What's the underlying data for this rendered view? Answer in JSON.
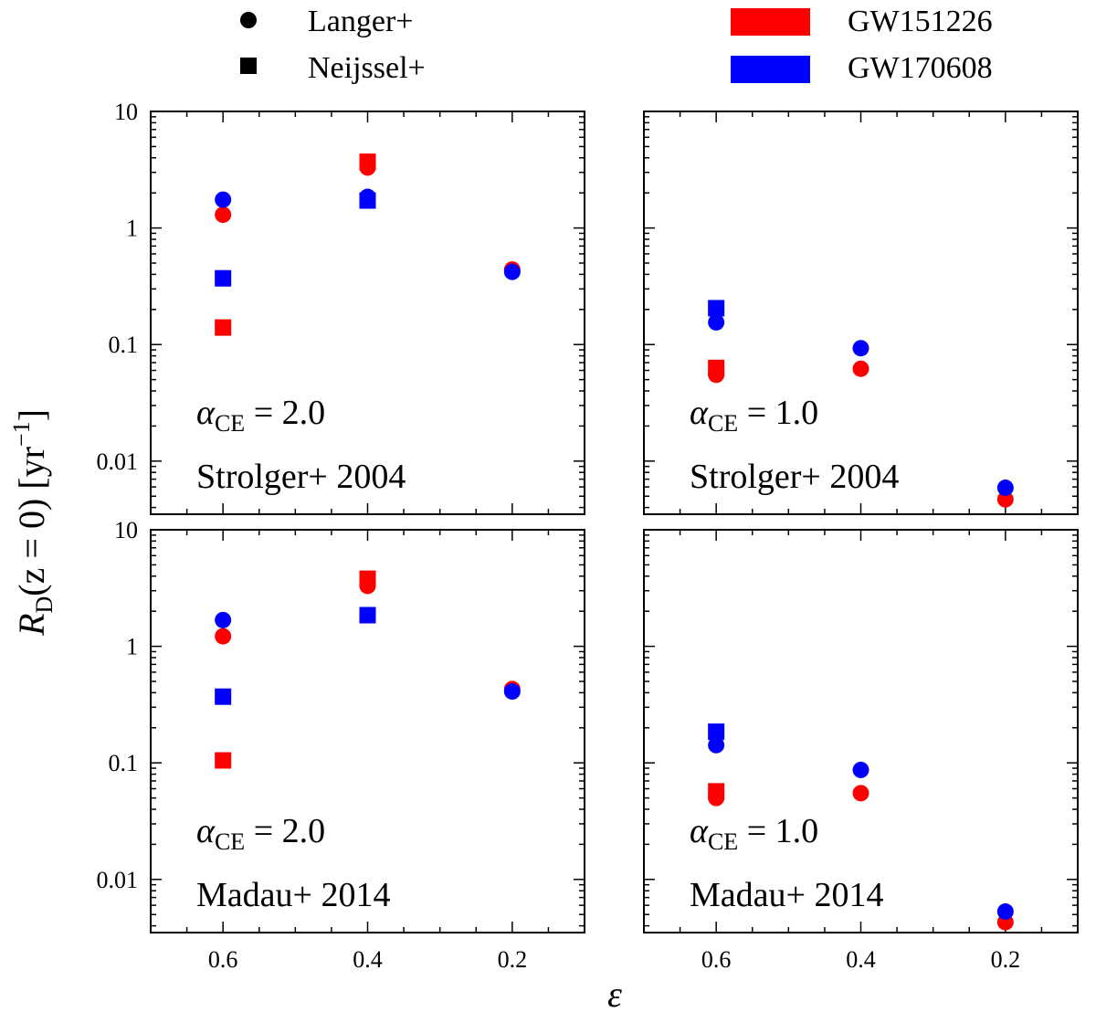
{
  "chart_data": {
    "type": "scatter",
    "x_label": "ε",
    "y_label": {
      "main": "R",
      "subscript": "D",
      "middle": "(z = 0) [yr",
      "superscript": "−1",
      "end": "]"
    },
    "x_ticks": [
      0.6,
      0.4,
      0.2
    ],
    "x_tick_labels": [
      "0.6",
      "0.4",
      "0.2"
    ],
    "x_range": [
      0.7,
      0.1
    ],
    "x_inverted": true,
    "y_scale": "log",
    "y_range": [
      0.0035,
      10
    ],
    "y_ticks": [
      0.01,
      0.1,
      1,
      10
    ],
    "y_tick_labels": [
      "0.01",
      "0.1",
      "1",
      "10"
    ],
    "legend": {
      "markers": [
        {
          "shape": "circle",
          "label": "Langer+"
        },
        {
          "shape": "square",
          "label": "Neijssel+"
        }
      ],
      "colors": [
        {
          "color": "#ff0000",
          "label": "GW151226"
        },
        {
          "color": "#0000ff",
          "label": "GW170608"
        }
      ]
    },
    "colors": {
      "GW151226": "#ff0000",
      "GW170608": "#0000ff"
    },
    "panels": [
      {
        "row": 0,
        "col": 0,
        "alpha_prefix": "α",
        "alpha_sub": "CE",
        "alpha_value": "= 2.0",
        "sfr_label": "Strolger+ 2004",
        "series": [
          {
            "event": "GW151226",
            "model": "Langer+",
            "x": [
              0.6,
              0.4,
              0.2
            ],
            "y": [
              1.3,
              3.3,
              0.44
            ]
          },
          {
            "event": "GW151226",
            "model": "Neijssel+",
            "x": [
              0.6,
              0.4
            ],
            "y": [
              0.14,
              3.7
            ]
          },
          {
            "event": "GW170608",
            "model": "Langer+",
            "x": [
              0.6,
              0.4,
              0.2
            ],
            "y": [
              1.75,
              1.85,
              0.42
            ]
          },
          {
            "event": "GW170608",
            "model": "Neijssel+",
            "x": [
              0.6,
              0.4
            ],
            "y": [
              0.37,
              1.72
            ]
          }
        ]
      },
      {
        "row": 0,
        "col": 1,
        "alpha_prefix": "α",
        "alpha_sub": "CE",
        "alpha_value": "= 1.0",
        "sfr_label": "Strolger+ 2004",
        "series": [
          {
            "event": "GW151226",
            "model": "Langer+",
            "x": [
              0.6,
              0.4,
              0.2
            ],
            "y": [
              0.055,
              0.062,
              0.0047
            ]
          },
          {
            "event": "GW151226",
            "model": "Neijssel+",
            "x": [
              0.6
            ],
            "y": [
              0.063
            ]
          },
          {
            "event": "GW170608",
            "model": "Langer+",
            "x": [
              0.6,
              0.4,
              0.2
            ],
            "y": [
              0.155,
              0.093,
              0.0059
            ]
          },
          {
            "event": "GW170608",
            "model": "Neijssel+",
            "x": [
              0.6
            ],
            "y": [
              0.205
            ]
          }
        ]
      },
      {
        "row": 1,
        "col": 0,
        "alpha_prefix": "α",
        "alpha_sub": "CE",
        "alpha_value": "= 2.0",
        "sfr_label": "Madau+ 2014",
        "series": [
          {
            "event": "GW151226",
            "model": "Langer+",
            "x": [
              0.6,
              0.4,
              0.2
            ],
            "y": [
              1.22,
              3.3,
              0.43
            ]
          },
          {
            "event": "GW151226",
            "model": "Neijssel+",
            "x": [
              0.6,
              0.4
            ],
            "y": [
              0.105,
              3.8
            ]
          },
          {
            "event": "GW170608",
            "model": "Langer+",
            "x": [
              0.6,
              0.2
            ],
            "y": [
              1.68,
              0.41
            ]
          },
          {
            "event": "GW170608",
            "model": "Neijssel+",
            "x": [
              0.6,
              0.4
            ],
            "y": [
              0.37,
              1.85
            ]
          }
        ]
      },
      {
        "row": 1,
        "col": 1,
        "alpha_prefix": "α",
        "alpha_sub": "CE",
        "alpha_value": "= 1.0",
        "sfr_label": "Madau+ 2014",
        "series": [
          {
            "event": "GW151226",
            "model": "Langer+",
            "x": [
              0.6,
              0.4,
              0.2
            ],
            "y": [
              0.05,
              0.055,
              0.0043
            ]
          },
          {
            "event": "GW151226",
            "model": "Neijssel+",
            "x": [
              0.6
            ],
            "y": [
              0.057
            ]
          },
          {
            "event": "GW170608",
            "model": "Langer+",
            "x": [
              0.6,
              0.4,
              0.2
            ],
            "y": [
              0.142,
              0.087,
              0.0053
            ]
          },
          {
            "event": "GW170608",
            "model": "Neijssel+",
            "x": [
              0.6
            ],
            "y": [
              0.185
            ]
          }
        ]
      }
    ]
  }
}
